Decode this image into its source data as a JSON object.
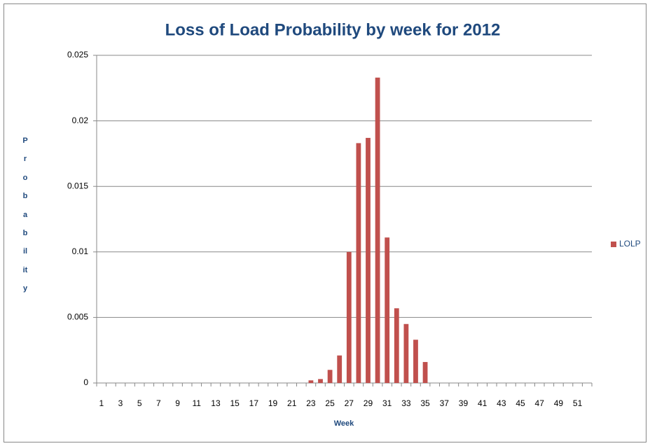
{
  "chart_data": {
    "type": "bar",
    "title": "Loss of Load Probability by week for 2012",
    "x_label": "Week",
    "y_label": "Probability",
    "categories": [
      "1",
      null,
      "3",
      null,
      "5",
      null,
      "7",
      null,
      "9",
      null,
      "11",
      null,
      "13",
      null,
      "15",
      null,
      "17",
      null,
      "19",
      null,
      "21",
      null,
      "23",
      null,
      "25",
      null,
      "27",
      null,
      "29",
      null,
      "31",
      null,
      "33",
      null,
      "35",
      null,
      "37",
      null,
      "39",
      null,
      "41",
      null,
      "43",
      null,
      "45",
      null,
      "47",
      null,
      "49",
      null,
      "51",
      null
    ],
    "series": [
      {
        "name": "LOLP",
        "color": "#c0504d",
        "values": [
          0,
          0,
          0,
          0,
          0,
          0,
          0,
          0,
          0,
          0,
          0,
          0,
          0,
          0,
          0,
          0,
          0,
          0,
          0,
          0,
          0,
          0,
          0.0002,
          0.0003,
          0.001,
          0.0021,
          0.01,
          0.0183,
          0.0187,
          0.0233,
          0.0111,
          0.0057,
          0.0045,
          0.0033,
          0.0016,
          0,
          0,
          0,
          0,
          0,
          0,
          0,
          0,
          0,
          0,
          0,
          0,
          0,
          0,
          0,
          0,
          0
        ]
      }
    ],
    "ylim": [
      0,
      0.025
    ],
    "yticks": [
      0,
      0.005,
      0.01,
      0.015,
      0.02,
      0.025
    ],
    "grid": true,
    "legend": "right"
  }
}
